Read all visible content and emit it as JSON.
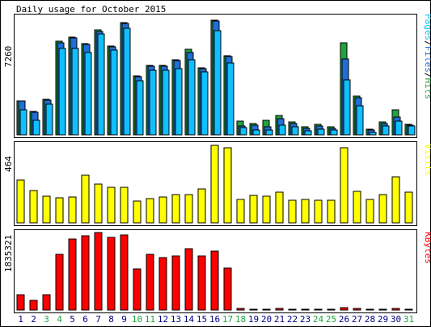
{
  "chart_data": {
    "type": "bar",
    "title": "Daily usage for October 2015",
    "days": [
      "1",
      "2",
      "3",
      "4",
      "5",
      "6",
      "7",
      "8",
      "9",
      "10",
      "11",
      "12",
      "13",
      "14",
      "15",
      "16",
      "17",
      "18",
      "19",
      "20",
      "21",
      "22",
      "23",
      "24",
      "25",
      "26",
      "27",
      "28",
      "29",
      "30",
      "31"
    ],
    "weekend_days": [
      "3",
      "4",
      "10",
      "11",
      "17",
      "18",
      "24",
      "25",
      "31"
    ],
    "colors": {
      "hits": "#1fa33e",
      "files": "#1f6fd6",
      "pages": "#10bfff",
      "visits": "#ffff00",
      "kbytes": "#ff0000",
      "weekday_label": "#000080",
      "weekend_label": "#1fa33e"
    },
    "panels": {
      "top": {
        "max_label": "7260",
        "legend": {
          "pages": "Pages",
          "files": "Files",
          "hits": "Hits",
          "sep": "/"
        },
        "ymax": 7260,
        "hits": [
          2100,
          1450,
          2200,
          5800,
          6050,
          5650,
          6500,
          5500,
          6950,
          3650,
          4300,
          4300,
          4650,
          5300,
          4150,
          7100,
          4900,
          850,
          700,
          900,
          1200,
          800,
          500,
          650,
          500,
          5700,
          2400,
          350,
          800,
          1550,
          650
        ],
        "files": [
          2100,
          1400,
          2150,
          5700,
          6000,
          5600,
          6400,
          5450,
          6900,
          3600,
          4250,
          4250,
          4600,
          5100,
          4100,
          7050,
          4850,
          550,
          600,
          500,
          1000,
          700,
          400,
          550,
          400,
          4700,
          2300,
          300,
          700,
          1100,
          600
        ],
        "pages": [
          1550,
          900,
          1900,
          5350,
          5350,
          5100,
          6250,
          5250,
          6600,
          3350,
          4000,
          4000,
          4100,
          4650,
          3900,
          6450,
          4450,
          450,
          300,
          300,
          600,
          500,
          250,
          350,
          300,
          3400,
          1800,
          150,
          550,
          850,
          550
        ]
      },
      "middle": {
        "max_label": "464",
        "legend": "Visits",
        "ymax": 464,
        "visits": [
          255,
          195,
          160,
          150,
          155,
          285,
          230,
          215,
          215,
          130,
          145,
          155,
          170,
          170,
          205,
          464,
          450,
          140,
          165,
          160,
          185,
          135,
          140,
          135,
          135,
          450,
          190,
          140,
          170,
          275,
          185
        ]
      },
      "bottom": {
        "max_label": "1835321",
        "legend": "KBytes",
        "ymax": 1835321,
        "kbytes": [
          365000,
          230000,
          355000,
          1320000,
          1690000,
          1760000,
          1835321,
          1730000,
          1780000,
          980000,
          1320000,
          1250000,
          1285000,
          1445000,
          1280000,
          1400000,
          1000000,
          30000,
          25000,
          25000,
          30000,
          20000,
          15000,
          20000,
          25000,
          55000,
          35000,
          10000,
          20000,
          30000,
          15000
        ]
      }
    }
  }
}
